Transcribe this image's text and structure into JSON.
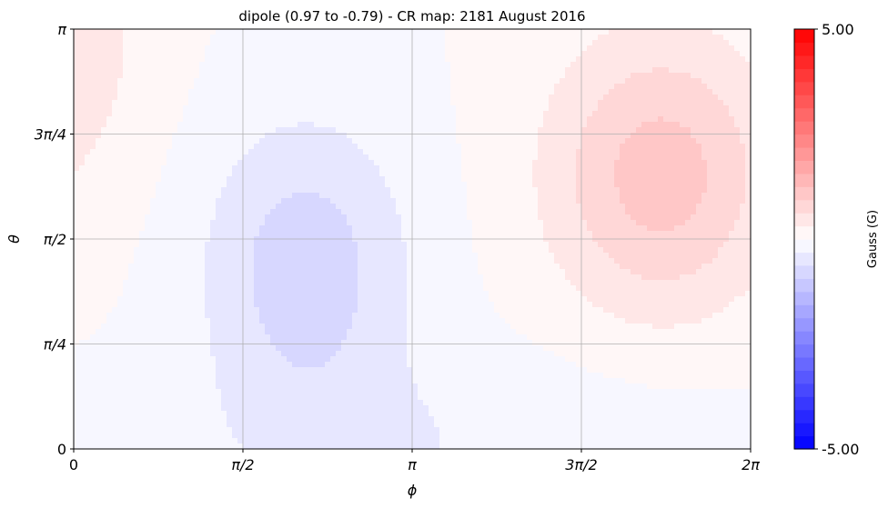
{
  "chart_data": {
    "type": "heatmap",
    "title": "dipole (0.97 to -0.79) - CR map: 2181 August 2016",
    "xlabel": "ϕ",
    "ylabel": "θ",
    "x_range": [
      0,
      6.283185
    ],
    "y_range": [
      0,
      3.141593
    ],
    "x_ticks": [
      {
        "value": 0,
        "label": "0"
      },
      {
        "value": 1.570796,
        "label": "π/2"
      },
      {
        "value": 3.141593,
        "label": "π"
      },
      {
        "value": 4.712389,
        "label": "3π/2"
      },
      {
        "value": 6.283185,
        "label": "2π"
      }
    ],
    "y_ticks": [
      {
        "value": 0,
        "label": "0"
      },
      {
        "value": 0.785398,
        "label": "π/4"
      },
      {
        "value": 1.570796,
        "label": "π/2"
      },
      {
        "value": 2.356194,
        "label": "3π/4"
      },
      {
        "value": 3.141593,
        "label": "π"
      }
    ],
    "field": {
      "description_of_values": "approximate field in Gauss sampled on a phi/theta grid",
      "range": [
        -0.79,
        0.97
      ],
      "positive_center": {
        "phi": 5.45,
        "theta": 2.05,
        "value": 0.97
      },
      "negative_center": {
        "phi": 2.15,
        "theta": 1.35,
        "value": -0.79
      }
    },
    "grid": true,
    "colorbar": {
      "label": "Gauss (G)",
      "max_label": "5.00",
      "min_label": "-5.00",
      "vmin": -5,
      "vmax": 5,
      "levels": 32,
      "colormap": "bwr",
      "colors": {
        "negative": "#0000ff",
        "zero": "#ffffff",
        "positive": "#ff0000"
      }
    }
  }
}
